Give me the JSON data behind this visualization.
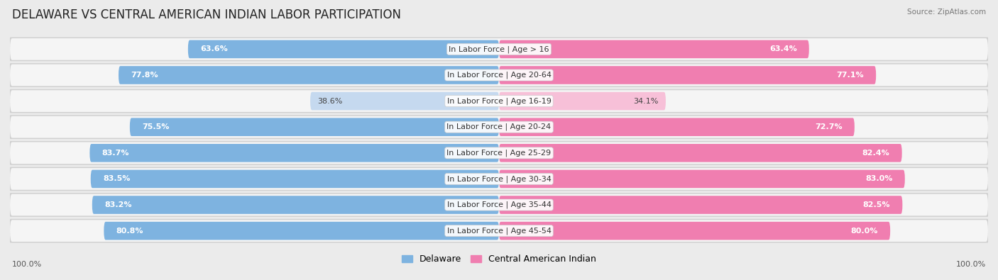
{
  "title": "DELAWARE VS CENTRAL AMERICAN INDIAN LABOR PARTICIPATION",
  "source": "Source: ZipAtlas.com",
  "categories": [
    "In Labor Force | Age > 16",
    "In Labor Force | Age 20-64",
    "In Labor Force | Age 16-19",
    "In Labor Force | Age 20-24",
    "In Labor Force | Age 25-29",
    "In Labor Force | Age 30-34",
    "In Labor Force | Age 35-44",
    "In Labor Force | Age 45-54"
  ],
  "delaware_values": [
    63.6,
    77.8,
    38.6,
    75.5,
    83.7,
    83.5,
    83.2,
    80.8
  ],
  "central_values": [
    63.4,
    77.1,
    34.1,
    72.7,
    82.4,
    83.0,
    82.5,
    80.0
  ],
  "delaware_color": "#7EB3E0",
  "delaware_color_light": "#C5D9EF",
  "central_color": "#F07EB0",
  "central_color_light": "#F7C0D8",
  "row_bg_color": "#E8E8E8",
  "row_inner_bg": "#F8F8F8",
  "bg_color": "#EBEBEB",
  "legend_delaware": "Delaware",
  "legend_central": "Central American Indian",
  "title_fontsize": 12,
  "label_fontsize": 8,
  "value_fontsize": 8,
  "axis_label_left": "100.0%",
  "axis_label_right": "100.0%",
  "max_value": 100.0
}
